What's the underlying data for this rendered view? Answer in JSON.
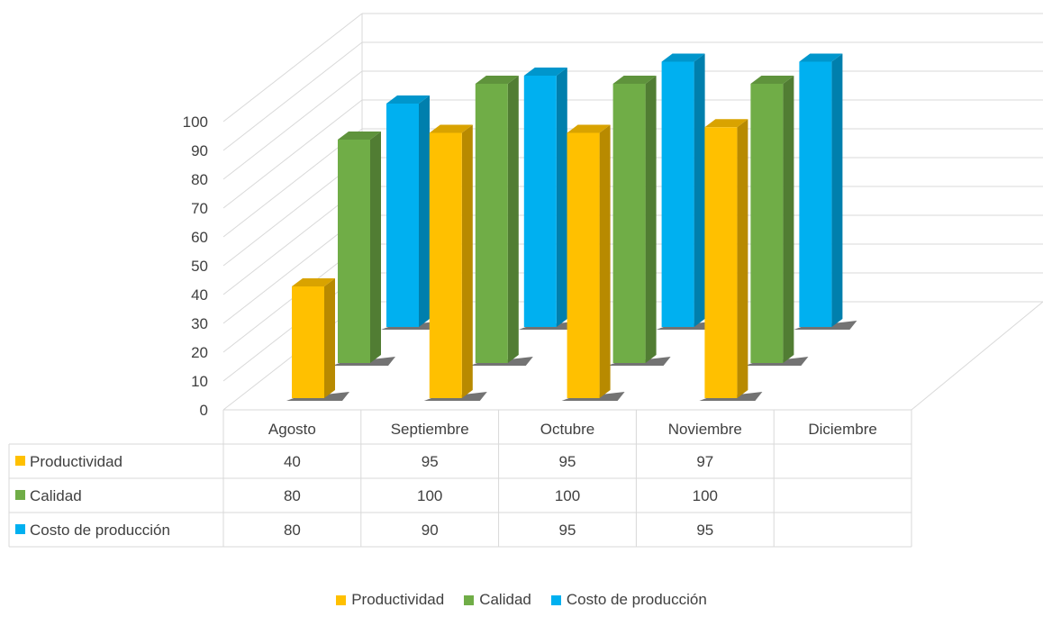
{
  "chart_data": {
    "type": "bar",
    "categories": [
      "Agosto",
      "Septiembre",
      "Octubre",
      "Noviembre",
      "Diciembre"
    ],
    "series": [
      {
        "name": "Productividad",
        "values": [
          40,
          95,
          95,
          97,
          null
        ],
        "color": "#FFC000"
      },
      {
        "name": "Calidad",
        "values": [
          80,
          100,
          100,
          100,
          null
        ],
        "color": "#70AD47"
      },
      {
        "name": "Costo de producción",
        "values": [
          80,
          90,
          95,
          95,
          null
        ],
        "color": "#00B0F0"
      }
    ],
    "yticks": [
      0,
      10,
      20,
      30,
      40,
      50,
      60,
      70,
      80,
      90,
      100
    ],
    "ylim": [
      0,
      100
    ],
    "grid": true,
    "legend": "bottom",
    "data_table": true,
    "style": "3d-clustered-column"
  }
}
